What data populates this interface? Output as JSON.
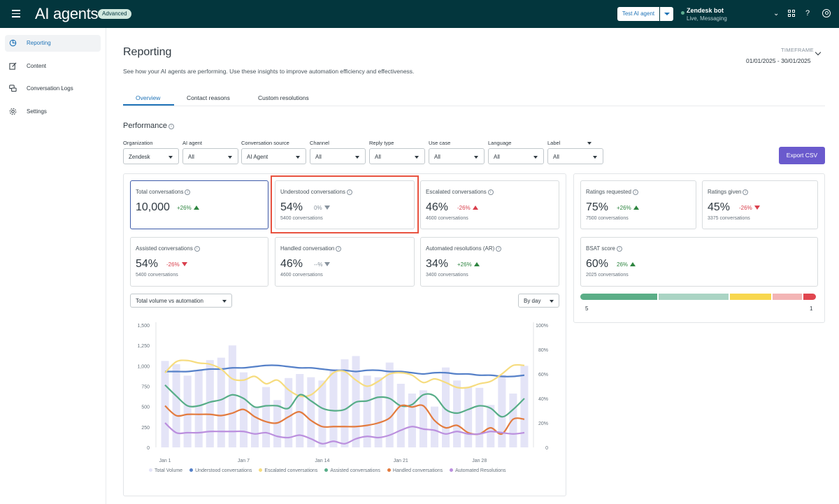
{
  "header": {
    "app_title": "AI agents",
    "badge": "Advanced",
    "test_button": "Test AI agent",
    "bot_name": "Zendesk bot",
    "bot_status": "Live, Messaging",
    "brand_color": "#03363d",
    "icons": [
      "menu-icon",
      "chevron-down-icon",
      "apps-icon",
      "help-icon",
      "user-icon"
    ]
  },
  "sidebar": {
    "items": [
      {
        "label": "Reporting",
        "icon": "pie-chart-icon",
        "active": true
      },
      {
        "label": "Content",
        "icon": "edit-icon",
        "active": false
      },
      {
        "label": "Conversation Logs",
        "icon": "chat-icon",
        "active": false
      },
      {
        "label": "Settings",
        "icon": "gear-icon",
        "active": false
      }
    ]
  },
  "page": {
    "title": "Reporting",
    "description": "See how your AI agents are performing. Use these insights to improve automation efficiency and effectiveness.",
    "timeframe_label": "TIMEFRAME",
    "timeframe_value": "01/01/2025 - 30/01/2025",
    "tabs": [
      "Overview",
      "Contact reasons",
      "Custom resolutions"
    ],
    "active_tab": "Overview"
  },
  "performance": {
    "title": "Performance",
    "export_label": "Export CSV",
    "filters": [
      {
        "label": "Organization",
        "value": "Zendesk"
      },
      {
        "label": "AI agent",
        "value": "All"
      },
      {
        "label": "Conversation source",
        "value": "AI Agent"
      },
      {
        "label": "Channel",
        "value": "All"
      },
      {
        "label": "Reply type",
        "value": "All"
      },
      {
        "label": "Use case",
        "value": "All"
      },
      {
        "label": "Language",
        "value": "All"
      },
      {
        "label": "Label",
        "value": "All"
      }
    ]
  },
  "metrics": [
    {
      "title": "Total conversations",
      "value": "10,000",
      "delta": "+26%",
      "trend": "up",
      "sub": ""
    },
    {
      "title": "Understood conversations",
      "value": "54%",
      "delta": "0%",
      "trend": "flat",
      "sub": "5400 conversations"
    },
    {
      "title": "Escalated conversations",
      "value": "46%",
      "delta": "-26%",
      "trend": "up-red",
      "sub": "4600 conversations"
    },
    {
      "title": "Assisted conversations",
      "value": "54%",
      "delta": "-26%",
      "trend": "down",
      "sub": "5400 conversations"
    },
    {
      "title": "Handled conversation",
      "value": "46%",
      "delta": "--%",
      "trend": "flat",
      "sub": "4600 conversations"
    },
    {
      "title": "Automated resolutions (AR)",
      "value": "34%",
      "delta": "+26%",
      "trend": "up",
      "sub": "3400 conversations"
    }
  ],
  "ratings": [
    {
      "title": "Ratings requested",
      "value": "75%",
      "delta": "+26%",
      "trend": "up",
      "sub": "7500 conversations"
    },
    {
      "title": "Ratings given",
      "value": "45%",
      "delta": "-26%",
      "trend": "down",
      "sub": "3375 conversations"
    },
    {
      "title": "BSAT score",
      "value": "60%",
      "delta": "26%",
      "trend": "up",
      "sub": "2025 conversations"
    }
  ],
  "bsat_scale": {
    "left": "5",
    "right": "1",
    "segments": [
      {
        "share": 0.33,
        "color": "#5bae87"
      },
      {
        "share": 0.3,
        "color": "#aad4c4"
      },
      {
        "share": 0.18,
        "color": "#f8d74e"
      },
      {
        "share": 0.13,
        "color": "#f3b5b5"
      },
      {
        "share": 0.06,
        "color": "#e0464f"
      }
    ]
  },
  "chart_controls": {
    "metric_select": "Total volume vs automation",
    "interval_select": "By day"
  },
  "chart_data": {
    "type": "bar",
    "x_ticks": [
      "Jan 1",
      "Jan 7",
      "Jan 14",
      "Jan 21",
      "Jan 28"
    ],
    "y_left_ticks": [
      "0",
      "250",
      "500",
      "750",
      "1,000",
      "1,250",
      "1,500"
    ],
    "y_right_ticks": [
      "0",
      "20%",
      "40%",
      "60%",
      "80%",
      "100%"
    ],
    "ylim_left": [
      0,
      1500
    ],
    "ylim_right": [
      0,
      100
    ],
    "bars": {
      "name": "Total Volume",
      "color": "#e4e4f7",
      "values": [
        1060,
        1020,
        880,
        950,
        1070,
        1100,
        1250,
        920,
        500,
        740,
        580,
        850,
        900,
        860,
        820,
        960,
        1080,
        1120,
        880,
        860,
        1040,
        780,
        660,
        700,
        500,
        980,
        820,
        740,
        730,
        520,
        890,
        660,
        1000
      ]
    },
    "series": [
      {
        "name": "Understood conversations",
        "color": "#5580c8",
        "values": [
          62,
          62,
          62,
          63,
          64,
          64,
          65,
          65,
          66,
          67,
          67,
          66,
          65,
          65,
          64,
          63,
          63,
          62,
          63,
          63,
          62,
          62,
          61,
          60,
          61,
          61,
          60,
          60,
          59,
          59,
          58,
          58,
          59
        ]
      },
      {
        "name": "Escalated conversations",
        "color": "#f6dc7f",
        "values": [
          61,
          70,
          71,
          69,
          68,
          64,
          56,
          55,
          58,
          52,
          55,
          47,
          42,
          43,
          51,
          61,
          62,
          55,
          50,
          54,
          60,
          61,
          59,
          53,
          56,
          53,
          49,
          49,
          52,
          54,
          60,
          67,
          67
        ]
      },
      {
        "name": "Assisted conversations",
        "color": "#57ad88",
        "values": [
          51,
          42,
          34,
          34,
          37,
          39,
          43,
          40,
          33,
          34,
          34,
          32,
          43,
          38,
          32,
          30,
          31,
          37,
          38,
          41,
          40,
          34,
          35,
          43,
          42,
          31,
          28,
          31,
          34,
          32,
          25,
          31,
          40
        ]
      },
      {
        "name": "Handled conversations",
        "color": "#e37b3e",
        "values": [
          34,
          26,
          27,
          27,
          27,
          26,
          28,
          31,
          25,
          21,
          20,
          25,
          29,
          22,
          17,
          17,
          17,
          17,
          18,
          20,
          24,
          34,
          33,
          34,
          22,
          16,
          18,
          12,
          11,
          16,
          11,
          23,
          23
        ]
      },
      {
        "name": "Automated Resolutions",
        "color": "#bb8fde",
        "values": [
          20,
          12,
          12,
          12,
          13,
          13,
          13,
          13,
          11,
          12,
          9,
          8,
          10,
          7,
          3,
          5,
          3,
          7,
          9,
          8,
          10,
          14,
          17,
          15,
          14,
          11,
          13,
          11,
          11,
          13,
          12,
          11,
          12
        ]
      }
    ],
    "legend": [
      "Total Volume",
      "Understood conversations",
      "Escalated conversations",
      "Assisted conversations",
      "Handled conversations",
      "Automated Resolutions"
    ]
  }
}
